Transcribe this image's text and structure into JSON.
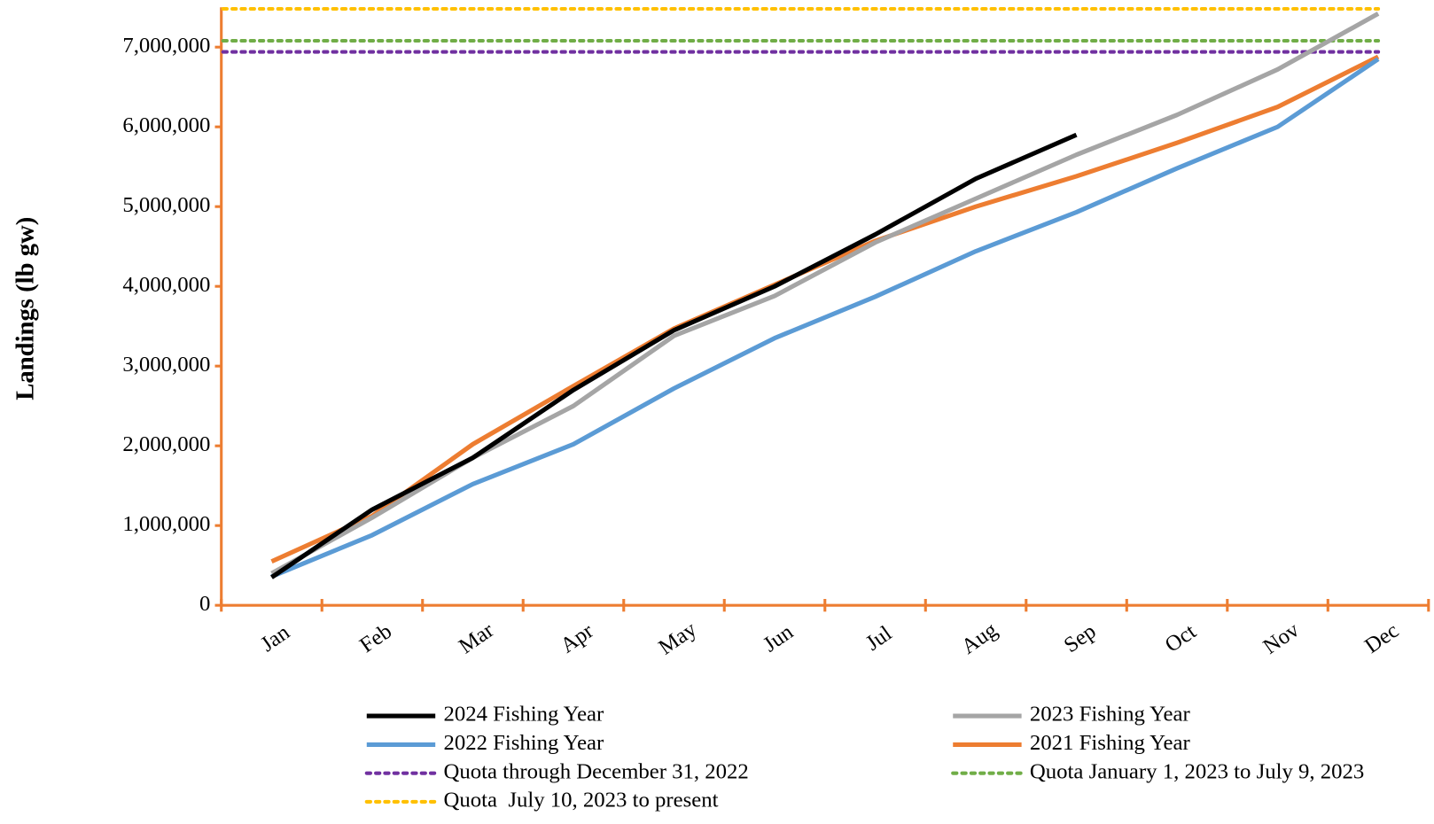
{
  "chart_data": {
    "type": "line",
    "y_label": "Landings (lb gw)",
    "categories": [
      "Jan",
      "Feb",
      "Mar",
      "Apr",
      "May",
      "Jun",
      "Jul",
      "Aug",
      "Sep",
      "Oct",
      "Nov",
      "Dec"
    ],
    "ylim": [
      0,
      7500000
    ],
    "yticks": [
      0,
      {
        "value": 1000000,
        "label": "1,000,000"
      },
      {
        "value": 2000000,
        "label": "2,000,000"
      },
      {
        "value": 3000000,
        "label": "3,000,000"
      },
      {
        "value": 4000000,
        "label": "4,000,000"
      },
      {
        "value": 5000000,
        "label": "5,000,000"
      },
      {
        "value": 6000000,
        "label": "6,000,000"
      },
      {
        "value": 7000000,
        "label": "7,000,000"
      }
    ],
    "axis_color": "#ed7d31",
    "series": [
      {
        "name": "2024 Fishing Year",
        "color": "#000000",
        "values": [
          350000,
          1200000,
          1850000,
          2700000,
          3450000,
          4000000,
          4650000,
          5350000,
          5900000,
          null,
          null,
          null
        ]
      },
      {
        "name": "2023 Fishing Year",
        "color": "#a5a5a5",
        "values": [
          400000,
          1100000,
          1850000,
          2500000,
          3380000,
          3880000,
          4550000,
          5100000,
          5650000,
          6150000,
          6720000,
          7420000
        ]
      },
      {
        "name": "2022 Fishing Year",
        "color": "#5b9bd5",
        "values": [
          360000,
          880000,
          1520000,
          2020000,
          2720000,
          3350000,
          3870000,
          4440000,
          4930000,
          5480000,
          6000000,
          6850000
        ]
      },
      {
        "name": "2021 Fishing Year",
        "color": "#ed7d31",
        "values": [
          550000,
          1120000,
          2020000,
          2750000,
          3470000,
          4020000,
          4570000,
          5000000,
          5380000,
          5800000,
          6250000,
          6880000
        ]
      }
    ],
    "quotas": [
      {
        "name": "Quota through December 31, 2022",
        "color": "#7030a0",
        "value": 6940000
      },
      {
        "name": "Quota January 1, 2023 to July 9, 2023",
        "color": "#70ad47",
        "value": 7080000
      },
      {
        "name": "Quota  July 10, 2023 to present",
        "color": "#ffc000",
        "value": 7480000
      }
    ]
  }
}
